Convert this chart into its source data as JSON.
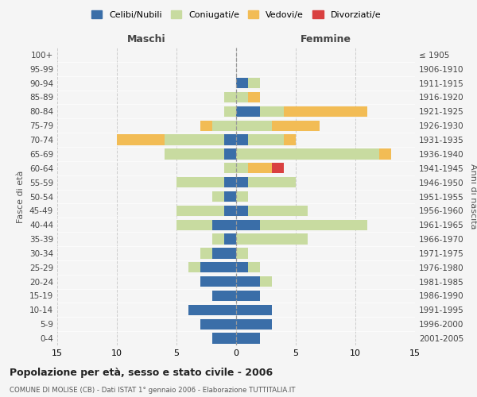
{
  "age_groups": [
    "0-4",
    "5-9",
    "10-14",
    "15-19",
    "20-24",
    "25-29",
    "30-34",
    "35-39",
    "40-44",
    "45-49",
    "50-54",
    "55-59",
    "60-64",
    "65-69",
    "70-74",
    "75-79",
    "80-84",
    "85-89",
    "90-94",
    "95-99",
    "100+"
  ],
  "birth_years": [
    "2001-2005",
    "1996-2000",
    "1991-1995",
    "1986-1990",
    "1981-1985",
    "1976-1980",
    "1971-1975",
    "1966-1970",
    "1961-1965",
    "1956-1960",
    "1951-1955",
    "1946-1950",
    "1941-1945",
    "1936-1940",
    "1931-1935",
    "1926-1930",
    "1921-1925",
    "1916-1920",
    "1911-1915",
    "1906-1910",
    "≤ 1905"
  ],
  "colors": {
    "celibi": "#3a6ea8",
    "coniugati": "#c8dba0",
    "vedovi": "#f2bc55",
    "divorziati": "#d94040"
  },
  "maschi": {
    "celibi": [
      2,
      3,
      4,
      2,
      3,
      3,
      2,
      1,
      2,
      1,
      1,
      1,
      0,
      1,
      1,
      0,
      0,
      0,
      0,
      0,
      0
    ],
    "coniugati": [
      0,
      0,
      0,
      0,
      0,
      1,
      1,
      1,
      3,
      4,
      1,
      4,
      1,
      5,
      5,
      2,
      1,
      1,
      0,
      0,
      0
    ],
    "vedovi": [
      0,
      0,
      0,
      0,
      0,
      0,
      0,
      0,
      0,
      0,
      0,
      0,
      0,
      0,
      4,
      1,
      0,
      0,
      0,
      0,
      0
    ],
    "divorziati": [
      0,
      0,
      0,
      0,
      0,
      0,
      0,
      0,
      0,
      0,
      0,
      0,
      0,
      0,
      0,
      0,
      0,
      0,
      0,
      0,
      0
    ]
  },
  "femmine": {
    "celibi": [
      2,
      3,
      3,
      2,
      2,
      1,
      0,
      0,
      2,
      1,
      0,
      1,
      0,
      0,
      1,
      0,
      2,
      0,
      1,
      0,
      0
    ],
    "coniugati": [
      0,
      0,
      0,
      0,
      1,
      1,
      1,
      6,
      9,
      5,
      1,
      4,
      1,
      12,
      3,
      3,
      2,
      1,
      1,
      0,
      0
    ],
    "vedovi": [
      0,
      0,
      0,
      0,
      0,
      0,
      0,
      0,
      0,
      0,
      0,
      0,
      2,
      1,
      1,
      4,
      7,
      1,
      0,
      0,
      0
    ],
    "divorziati": [
      0,
      0,
      0,
      0,
      0,
      0,
      0,
      0,
      0,
      0,
      0,
      0,
      1,
      0,
      0,
      0,
      0,
      0,
      0,
      0,
      0
    ]
  },
  "title": "Popolazione per età, sesso e stato civile - 2006",
  "subtitle": "COMUNE DI MOLISE (CB) - Dati ISTAT 1° gennaio 2006 - Elaborazione TUTTITALIA.IT",
  "xlabel_left": "Maschi",
  "xlabel_right": "Femmine",
  "ylabel_left": "Fasce di età",
  "ylabel_right": "Anni di nascita",
  "xlim": 15,
  "legend_labels": [
    "Celibi/Nubili",
    "Coniugati/e",
    "Vedovi/e",
    "Divorziati/e"
  ],
  "bg_color": "#f5f5f5"
}
